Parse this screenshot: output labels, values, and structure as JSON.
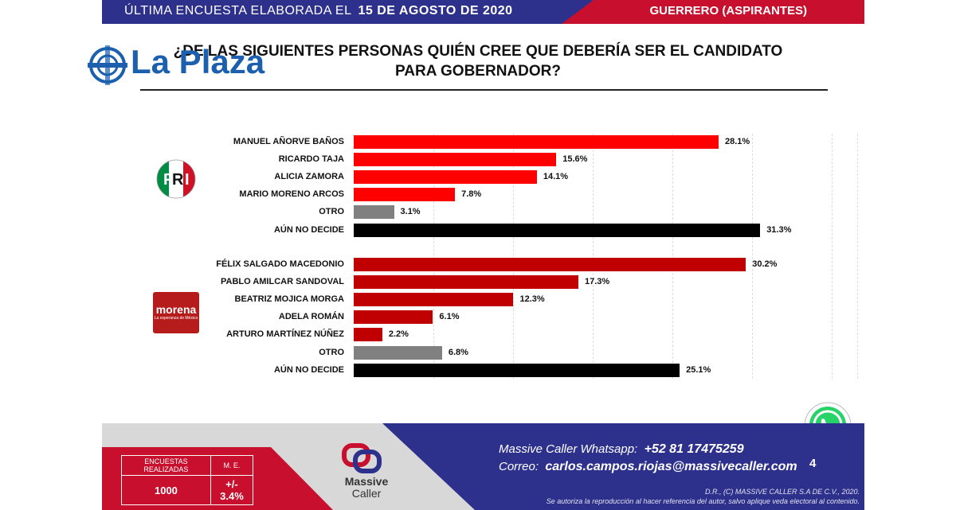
{
  "header": {
    "left_text": "ÚLTIMA ENCUESTA ELABORADA EL",
    "date": "15 DE AGOSTO DE 2020",
    "right_text": "GUERRERO (ASPIRANTES)"
  },
  "logo": {
    "text": "La Plaza"
  },
  "question": "¿DE LAS SIGUIENTES PERSONAS QUIÉN CREE QUE DEBERÍA SER EL CANDIDATO PARA GOBERNADOR?",
  "parties": {
    "pri": {
      "label": "PRI",
      "letters": [
        "P",
        "R",
        "I"
      ]
    },
    "morena": {
      "label": "morena",
      "tagline": "La esperanza de México"
    }
  },
  "chart_data": [
    {
      "type": "bar",
      "orientation": "horizontal",
      "group": "PRI",
      "categories": [
        "MANUEL AÑORVE BAÑOS",
        "RICARDO TAJA",
        "ALICIA ZAMORA",
        "MARIO MORENO ARCOS",
        "OTRO",
        "AÚN NO DECIDE"
      ],
      "values": [
        28.1,
        15.6,
        14.1,
        7.8,
        3.1,
        31.3
      ],
      "value_labels": [
        "28.1%",
        "15.6%",
        "14.1%",
        "7.8%",
        "3.1%",
        "31.3%"
      ],
      "colors": [
        "#ff0000",
        "#ff0000",
        "#ff0000",
        "#ff0000",
        "#808080",
        "#000000"
      ],
      "unit": "%"
    },
    {
      "type": "bar",
      "orientation": "horizontal",
      "group": "MORENA",
      "categories": [
        "FÉLIX SALGADO MACEDONIO",
        "PABLO AMILCAR SANDOVAL",
        "BEATRIZ MOJICA MORGA",
        "ADELA ROMÁN",
        "ARTURO MARTÍNEZ NÚÑEZ",
        "OTRO",
        "AÚN NO DECIDE"
      ],
      "values": [
        30.2,
        17.3,
        12.3,
        6.1,
        2.2,
        6.8,
        25.1
      ],
      "value_labels": [
        "30.2%",
        "17.3%",
        "12.3%",
        "6.1%",
        "2.2%",
        "6.8%",
        "25.1%"
      ],
      "colors": [
        "#c00000",
        "#c00000",
        "#c00000",
        "#c00000",
        "#c00000",
        "#808080",
        "#000000"
      ],
      "unit": "%"
    }
  ],
  "footer": {
    "stats_header_1": "ENCUESTAS REALIZADAS",
    "stats_header_2": "M. E.",
    "stats_value_1": "1000",
    "stats_value_2": "+/- 3.4%",
    "brand_line1": "Massive",
    "brand_line2": "Caller",
    "whatsapp_label": "Massive Caller Whatsapp:",
    "whatsapp_number": "+52 81 17475259",
    "email_label": "Correo:",
    "email": "carlos.campos.riojas@massivecaller.com",
    "page_number": "4",
    "legal_1": "D.R., (C) MASSIVE CALLER S.A DE C.V., 2020.",
    "legal_2": "Se autoriza la reproducción al hacer referencia del autor, salvo aplique veda electoral al contenido."
  },
  "colors": {
    "navy": "#2e318c",
    "red": "#c8102e",
    "pri_bar": "#ff0000",
    "morena_bar": "#c00000",
    "other_bar": "#808080",
    "undecided_bar": "#000000"
  }
}
